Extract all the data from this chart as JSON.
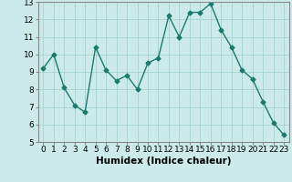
{
  "x": [
    0,
    1,
    2,
    3,
    4,
    5,
    6,
    7,
    8,
    9,
    10,
    11,
    12,
    13,
    14,
    15,
    16,
    17,
    18,
    19,
    20,
    21,
    22,
    23
  ],
  "y": [
    9.2,
    10.0,
    8.1,
    7.1,
    6.7,
    10.4,
    9.1,
    8.5,
    8.8,
    8.0,
    9.5,
    9.8,
    12.2,
    11.0,
    12.4,
    12.4,
    12.9,
    11.4,
    10.4,
    9.1,
    8.6,
    7.3,
    6.1,
    5.4
  ],
  "line_color": "#1a7a6e",
  "marker": "D",
  "marker_size": 2.5,
  "linewidth": 1.0,
  "bg_color": "#cceaea",
  "grid_color": "#9ecece",
  "xlabel": "Humidex (Indice chaleur)",
  "xlim": [
    -0.5,
    23.5
  ],
  "ylim": [
    5,
    13
  ],
  "yticks": [
    5,
    6,
    7,
    8,
    9,
    10,
    11,
    12,
    13
  ],
  "xticks": [
    0,
    1,
    2,
    3,
    4,
    5,
    6,
    7,
    8,
    9,
    10,
    11,
    12,
    13,
    14,
    15,
    16,
    17,
    18,
    19,
    20,
    21,
    22,
    23
  ],
  "xtick_labels": [
    "0",
    "1",
    "2",
    "3",
    "4",
    "5",
    "6",
    "7",
    "8",
    "9",
    "10",
    "11",
    "12",
    "13",
    "14",
    "15",
    "16",
    "17",
    "18",
    "19",
    "20",
    "21",
    "22",
    "23"
  ],
  "xlabel_fontsize": 7.5,
  "tick_fontsize": 6.5
}
